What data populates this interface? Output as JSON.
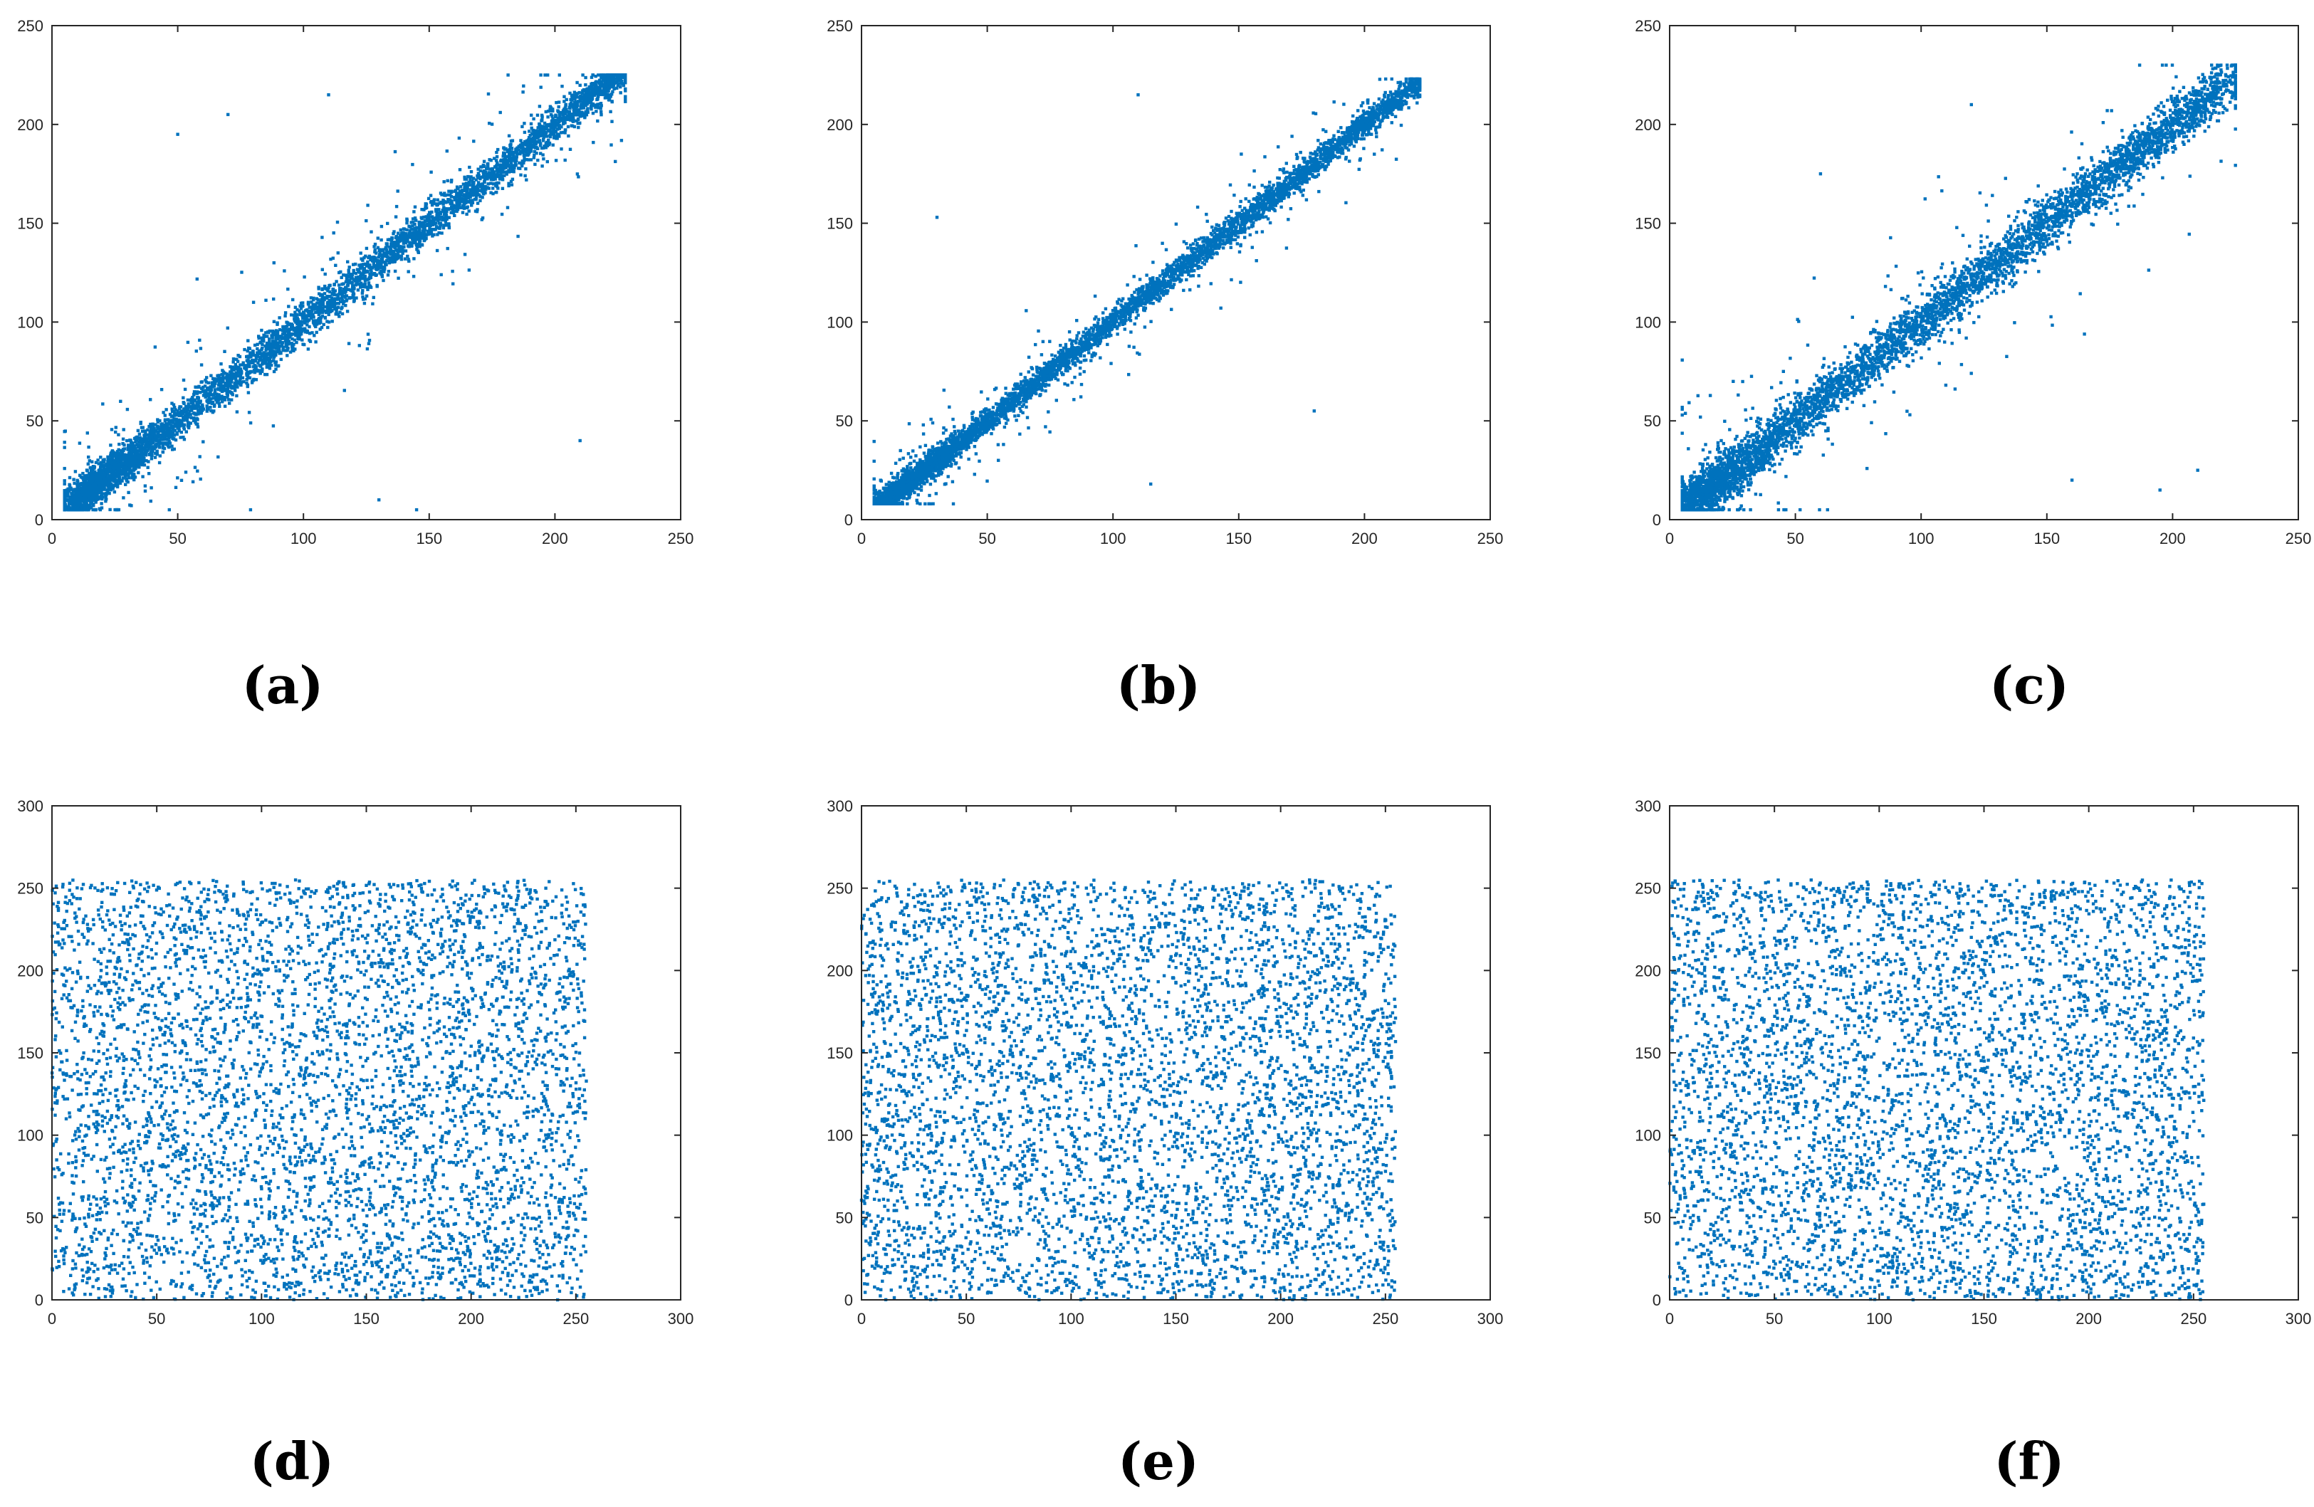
{
  "panel_labels": [
    "(a)",
    "(b)",
    "(c)",
    "(d)",
    "(e)",
    "(f)"
  ],
  "colors": {
    "points": "#0072BD",
    "axes": "#262626",
    "background": "#ffffff"
  },
  "chart_data": [
    {
      "type": "scatter",
      "panel": "(a)",
      "title": "",
      "xlabel": "",
      "ylabel": "",
      "xlim": [
        0,
        250
      ],
      "ylim": [
        0,
        250
      ],
      "xticks": [
        0,
        50,
        100,
        150,
        200,
        250
      ],
      "yticks": [
        0,
        50,
        100,
        150,
        200,
        250
      ],
      "distribution": "correlated",
      "correlation_approx": 0.96,
      "x_range": [
        5,
        228
      ],
      "y_range": [
        5,
        225
      ],
      "points_approx": 5000,
      "sample_points": [
        [
          10,
          15
        ],
        [
          20,
          25
        ],
        [
          25,
          20
        ],
        [
          50,
          55
        ],
        [
          60,
          65
        ],
        [
          80,
          85
        ],
        [
          100,
          105
        ],
        [
          120,
          125
        ],
        [
          150,
          150
        ],
        [
          180,
          185
        ],
        [
          200,
          200
        ],
        [
          220,
          218
        ],
        [
          70,
          205
        ],
        [
          110,
          215
        ],
        [
          50,
          195
        ],
        [
          210,
          40
        ],
        [
          145,
          5
        ],
        [
          130,
          10
        ]
      ],
      "grid": false,
      "legend": "none"
    },
    {
      "type": "scatter",
      "panel": "(b)",
      "title": "",
      "xlabel": "",
      "ylabel": "",
      "xlim": [
        0,
        250
      ],
      "ylim": [
        0,
        250
      ],
      "xticks": [
        0,
        50,
        100,
        150,
        200,
        250
      ],
      "yticks": [
        0,
        50,
        100,
        150,
        200,
        250
      ],
      "distribution": "correlated",
      "correlation_approx": 0.98,
      "x_range": [
        5,
        222
      ],
      "y_range": [
        8,
        223
      ],
      "points_approx": 5000,
      "sample_points": [
        [
          10,
          12
        ],
        [
          20,
          22
        ],
        [
          30,
          28
        ],
        [
          50,
          52
        ],
        [
          80,
          82
        ],
        [
          100,
          100
        ],
        [
          130,
          132
        ],
        [
          160,
          160
        ],
        [
          190,
          190
        ],
        [
          220,
          220
        ],
        [
          30,
          153
        ],
        [
          110,
          215
        ],
        [
          180,
          55
        ],
        [
          115,
          18
        ]
      ],
      "grid": false,
      "legend": "none"
    },
    {
      "type": "scatter",
      "panel": "(c)",
      "title": "",
      "xlabel": "",
      "ylabel": "",
      "xlim": [
        0,
        250
      ],
      "ylim": [
        0,
        250
      ],
      "xticks": [
        0,
        50,
        100,
        150,
        200,
        250
      ],
      "yticks": [
        0,
        50,
        100,
        150,
        200,
        250
      ],
      "distribution": "correlated",
      "correlation_approx": 0.94,
      "x_range": [
        5,
        225
      ],
      "y_range": [
        5,
        230
      ],
      "points_approx": 5000,
      "sample_points": [
        [
          10,
          15
        ],
        [
          20,
          25
        ],
        [
          50,
          50
        ],
        [
          80,
          80
        ],
        [
          100,
          100
        ],
        [
          130,
          130
        ],
        [
          160,
          160
        ],
        [
          200,
          200
        ],
        [
          225,
          228
        ],
        [
          120,
          210
        ],
        [
          60,
          175
        ],
        [
          210,
          25
        ],
        [
          195,
          15
        ],
        [
          160,
          20
        ]
      ],
      "grid": false,
      "legend": "none"
    },
    {
      "type": "scatter",
      "panel": "(d)",
      "title": "",
      "xlabel": "",
      "ylabel": "",
      "xlim": [
        0,
        300
      ],
      "ylim": [
        0,
        300
      ],
      "xticks": [
        0,
        50,
        100,
        150,
        200,
        250,
        300
      ],
      "yticks": [
        0,
        50,
        100,
        150,
        200,
        250,
        300
      ],
      "distribution": "uniform",
      "x_range": [
        0,
        255
      ],
      "y_range": [
        0,
        255
      ],
      "points_approx": 5000,
      "grid": false,
      "legend": "none"
    },
    {
      "type": "scatter",
      "panel": "(e)",
      "title": "",
      "xlabel": "",
      "ylabel": "",
      "xlim": [
        0,
        300
      ],
      "ylim": [
        0,
        300
      ],
      "xticks": [
        0,
        50,
        100,
        150,
        200,
        250,
        300
      ],
      "yticks": [
        0,
        50,
        100,
        150,
        200,
        250,
        300
      ],
      "distribution": "uniform",
      "x_range": [
        0,
        255
      ],
      "y_range": [
        0,
        255
      ],
      "points_approx": 5000,
      "grid": false,
      "legend": "none"
    },
    {
      "type": "scatter",
      "panel": "(f)",
      "title": "",
      "xlabel": "",
      "ylabel": "",
      "xlim": [
        0,
        300
      ],
      "ylim": [
        0,
        300
      ],
      "xticks": [
        0,
        50,
        100,
        150,
        200,
        250,
        300
      ],
      "yticks": [
        0,
        50,
        100,
        150,
        200,
        250,
        300
      ],
      "distribution": "uniform",
      "x_range": [
        0,
        255
      ],
      "y_range": [
        0,
        255
      ],
      "points_approx": 5000,
      "grid": false,
      "legend": "none"
    }
  ]
}
